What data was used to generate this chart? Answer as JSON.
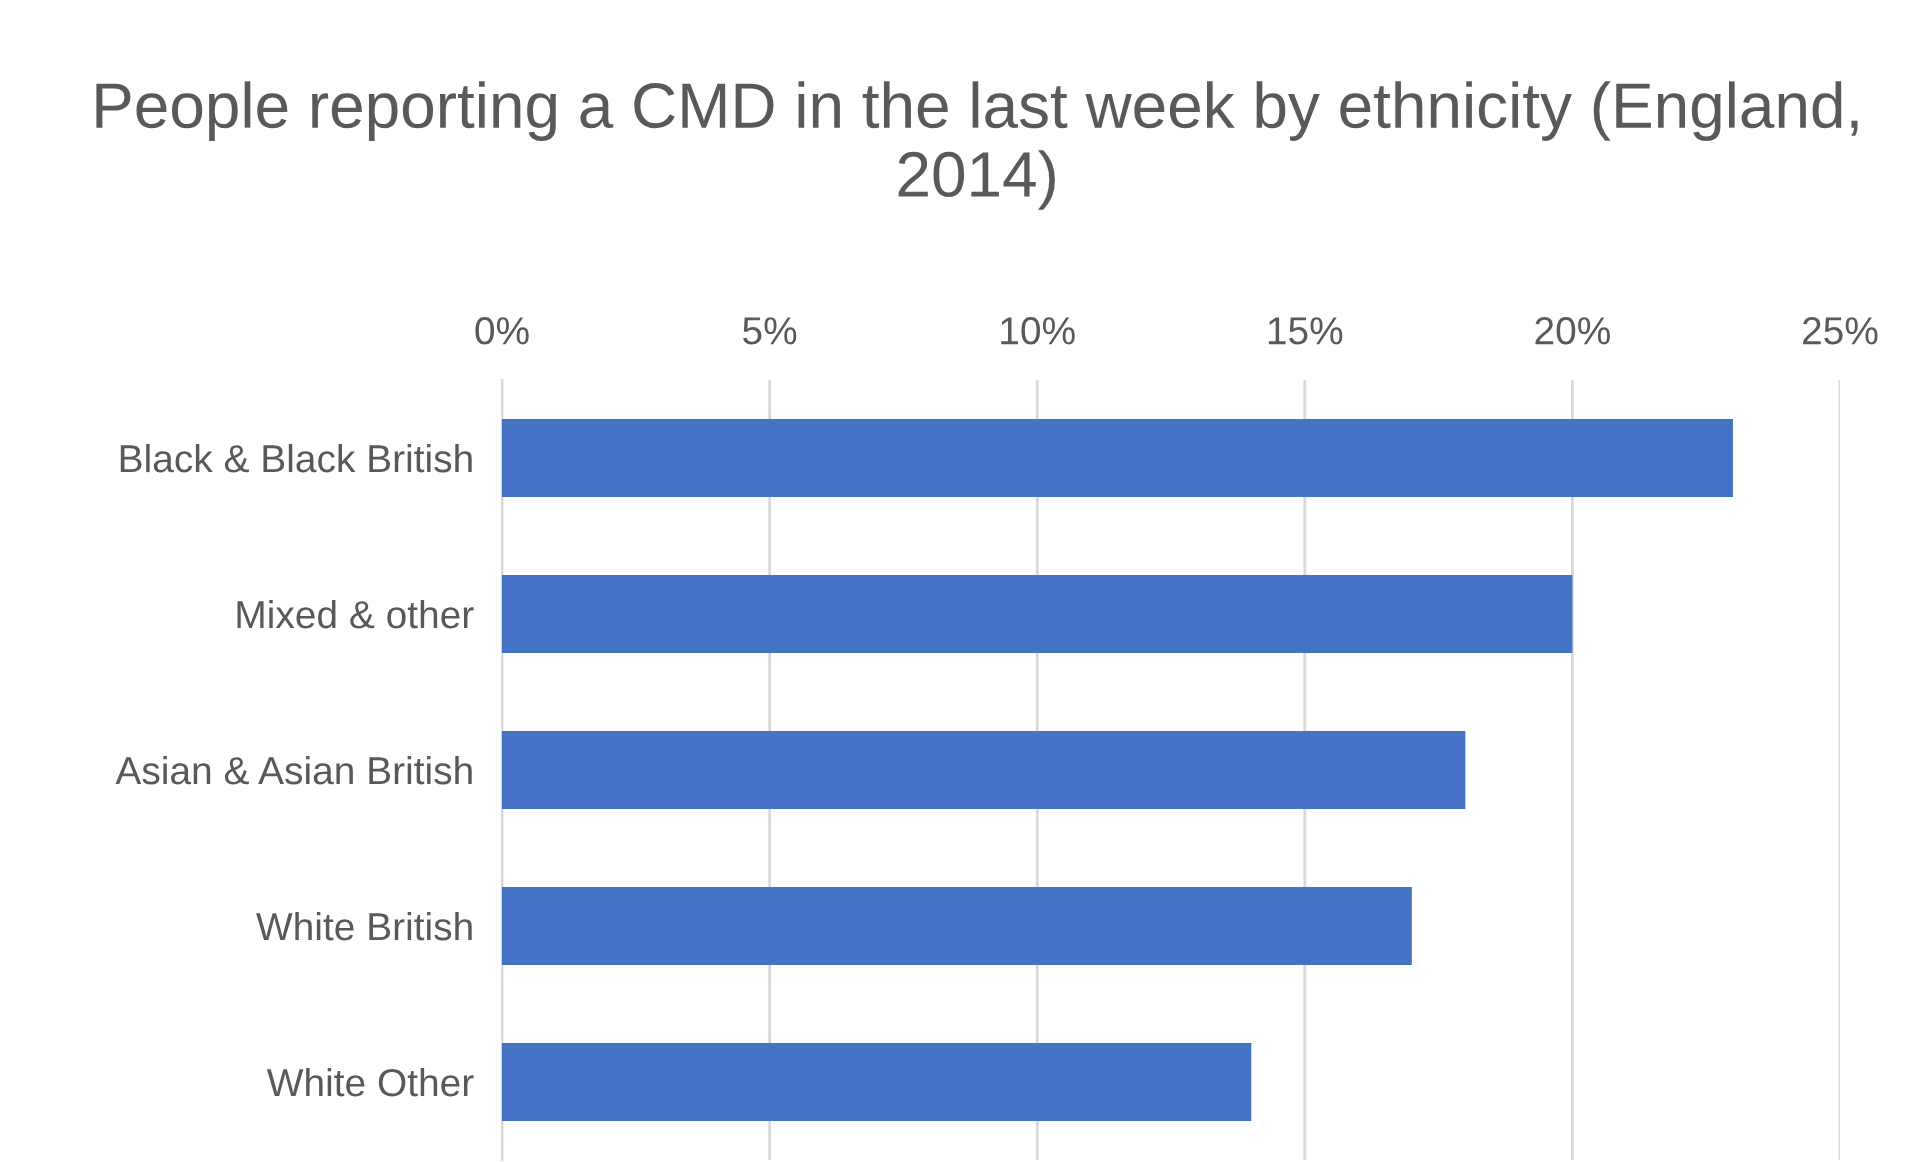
{
  "chart_data": {
    "type": "bar",
    "orientation": "horizontal",
    "title": "People reporting a CMD in the last week by ethnicity (England, 2014)",
    "categories": [
      "Black & Black British",
      "Mixed & other",
      "Asian & Asian British",
      "White British",
      "White Other"
    ],
    "values": [
      23,
      20,
      18,
      17,
      14
    ],
    "color": "#4472c4",
    "xlim": [
      0,
      25
    ],
    "xticks": [
      {
        "value": 0,
        "label": "0%"
      },
      {
        "value": 5,
        "label": "5%"
      },
      {
        "value": 10,
        "label": "10%"
      },
      {
        "value": 15,
        "label": "15%"
      },
      {
        "value": 20,
        "label": "20%"
      },
      {
        "value": 25,
        "label": "25%"
      }
    ],
    "grid": "x",
    "legend": false
  }
}
